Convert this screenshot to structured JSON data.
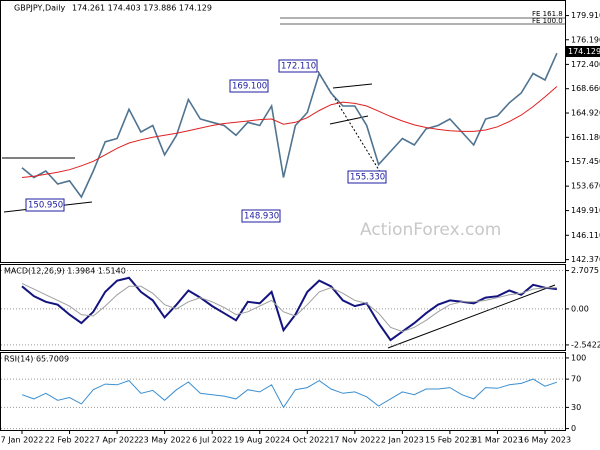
{
  "chart_data": [
    {
      "type": "line",
      "title": "GBPJPY,Daily",
      "subtitle": "174.261 174.403 173.886 174.129",
      "categories": [
        "7 Jan 2022",
        null,
        null,
        null,
        "22 Feb 2022",
        null,
        null,
        null,
        "7 Apr 2022",
        null,
        null,
        null,
        "23 May 2022",
        null,
        null,
        null,
        "6 Jul 2022",
        null,
        null,
        null,
        "19 Aug 2022",
        null,
        null,
        null,
        "4 Oct 2022",
        null,
        null,
        null,
        "17 Nov 2022",
        null,
        null,
        null,
        "2 Jan 2023",
        null,
        null,
        null,
        "15 Feb 2023",
        null,
        null,
        null,
        "31 Mar 2023",
        null,
        null,
        null,
        "16 May 2023",
        null
      ],
      "series": [
        {
          "color": "#4f7390",
          "values": [
            156.5,
            155.0,
            156.0,
            154.0,
            154.5,
            152.0,
            156.0,
            160.5,
            161.0,
            165.5,
            162.0,
            163.0,
            158.5,
            161.5,
            167.0,
            164.0,
            163.5,
            163.0,
            161.5,
            163.5,
            163.0,
            166.0,
            155.0,
            163.0,
            165.0,
            171.0,
            168.0,
            166.0,
            166.0,
            163.0,
            157.0,
            159.0,
            161.0,
            160.0,
            162.5,
            163.0,
            164.0,
            162.0,
            160.0,
            164.0,
            164.5,
            166.5,
            168.0,
            171.0,
            170.0,
            174.129
          ]
        },
        {
          "color": "#e02020",
          "values": [
            155.0,
            155.2,
            155.5,
            155.8,
            156.2,
            156.8,
            157.5,
            158.5,
            159.5,
            160.3,
            160.8,
            161.2,
            161.5,
            161.8,
            162.2,
            162.6,
            163.0,
            163.3,
            163.5,
            163.7,
            163.9,
            164.0,
            163.2,
            163.5,
            164.2,
            165.3,
            166.2,
            166.6,
            166.4,
            166.0,
            165.2,
            164.4,
            163.7,
            163.1,
            162.7,
            162.4,
            162.2,
            162.1,
            162.1,
            162.3,
            162.8,
            163.6,
            164.6,
            165.9,
            167.4,
            169.0
          ]
        }
      ],
      "ylim": [
        142.0,
        182.0
      ],
      "yticks": [
        {
          "value": 179.91,
          "label": "179.910"
        },
        {
          "value": 176.19,
          "label": "176.190"
        },
        {
          "value": 172.4,
          "label": "172.400"
        },
        {
          "value": 168.66,
          "label": "168.660"
        },
        {
          "value": 164.92,
          "label": "164.920"
        },
        {
          "value": 161.18,
          "label": "161.180"
        },
        {
          "value": 157.45,
          "label": "157.450"
        },
        {
          "value": 153.67,
          "label": "153.670"
        },
        {
          "value": 149.91,
          "label": "149.910"
        },
        {
          "value": 146.11,
          "label": "146.110"
        },
        {
          "value": 142.37,
          "label": "142.370"
        }
      ],
      "annotations": [
        "172.110",
        "169.100",
        "148.930",
        "150.950",
        "155.330",
        "FE 161.8",
        "FE 100.0",
        "174.129"
      ],
      "watermark": "ActionForex.com"
    },
    {
      "type": "line",
      "title": "MACD(12,26,9) 1.3984 1.5140",
      "series": [
        {
          "color": "#141480",
          "values": [
            1.6,
            0.9,
            0.5,
            0.3,
            -0.4,
            -1.0,
            -0.2,
            1.2,
            2.0,
            2.2,
            1.2,
            0.6,
            -0.6,
            0.3,
            1.3,
            0.8,
            0.2,
            -0.3,
            -0.8,
            0.5,
            0.4,
            1.2,
            -1.5,
            -0.4,
            1.2,
            2.0,
            1.6,
            0.6,
            0.2,
            0.4,
            -1.0,
            -2.2,
            -1.6,
            -1.0,
            -0.3,
            0.3,
            0.6,
            0.5,
            0.4,
            0.8,
            0.9,
            1.3,
            1.0,
            1.7,
            1.5,
            1.4
          ]
        },
        {
          "color": "#a0a0a0",
          "values": [
            1.8,
            1.4,
            1.0,
            0.6,
            0.2,
            -0.4,
            -0.5,
            0.2,
            1.0,
            1.6,
            1.6,
            1.1,
            0.3,
            0.0,
            0.5,
            0.8,
            0.5,
            0.1,
            -0.4,
            -0.2,
            0.2,
            0.6,
            -0.2,
            -0.5,
            0.3,
            1.2,
            1.5,
            1.1,
            0.6,
            0.4,
            -0.3,
            -1.3,
            -1.6,
            -1.3,
            -0.8,
            -0.2,
            0.3,
            0.5,
            0.5,
            0.6,
            0.8,
            1.0,
            1.1,
            1.4,
            1.5,
            1.5
          ]
        }
      ],
      "ylim": [
        -2.9,
        3.1
      ],
      "yticks": [
        2.7075,
        {
          "value": 0,
          "label": "0.00"
        },
        -2.5422
      ]
    },
    {
      "type": "line",
      "title": "RSI(14) 65.7009",
      "series": [
        {
          "color": "#3c8fd0",
          "values": [
            48,
            42,
            50,
            40,
            44,
            35,
            55,
            63,
            62,
            68,
            50,
            54,
            40,
            55,
            66,
            50,
            48,
            46,
            42,
            55,
            52,
            62,
            30,
            55,
            58,
            68,
            56,
            50,
            52,
            45,
            32,
            42,
            52,
            48,
            56,
            56,
            58,
            48,
            42,
            58,
            57,
            62,
            64,
            70,
            60,
            65.7009
          ]
        }
      ],
      "ylim": [
        -2,
        107
      ],
      "yticks": [
        100,
        70,
        30,
        0
      ]
    }
  ]
}
